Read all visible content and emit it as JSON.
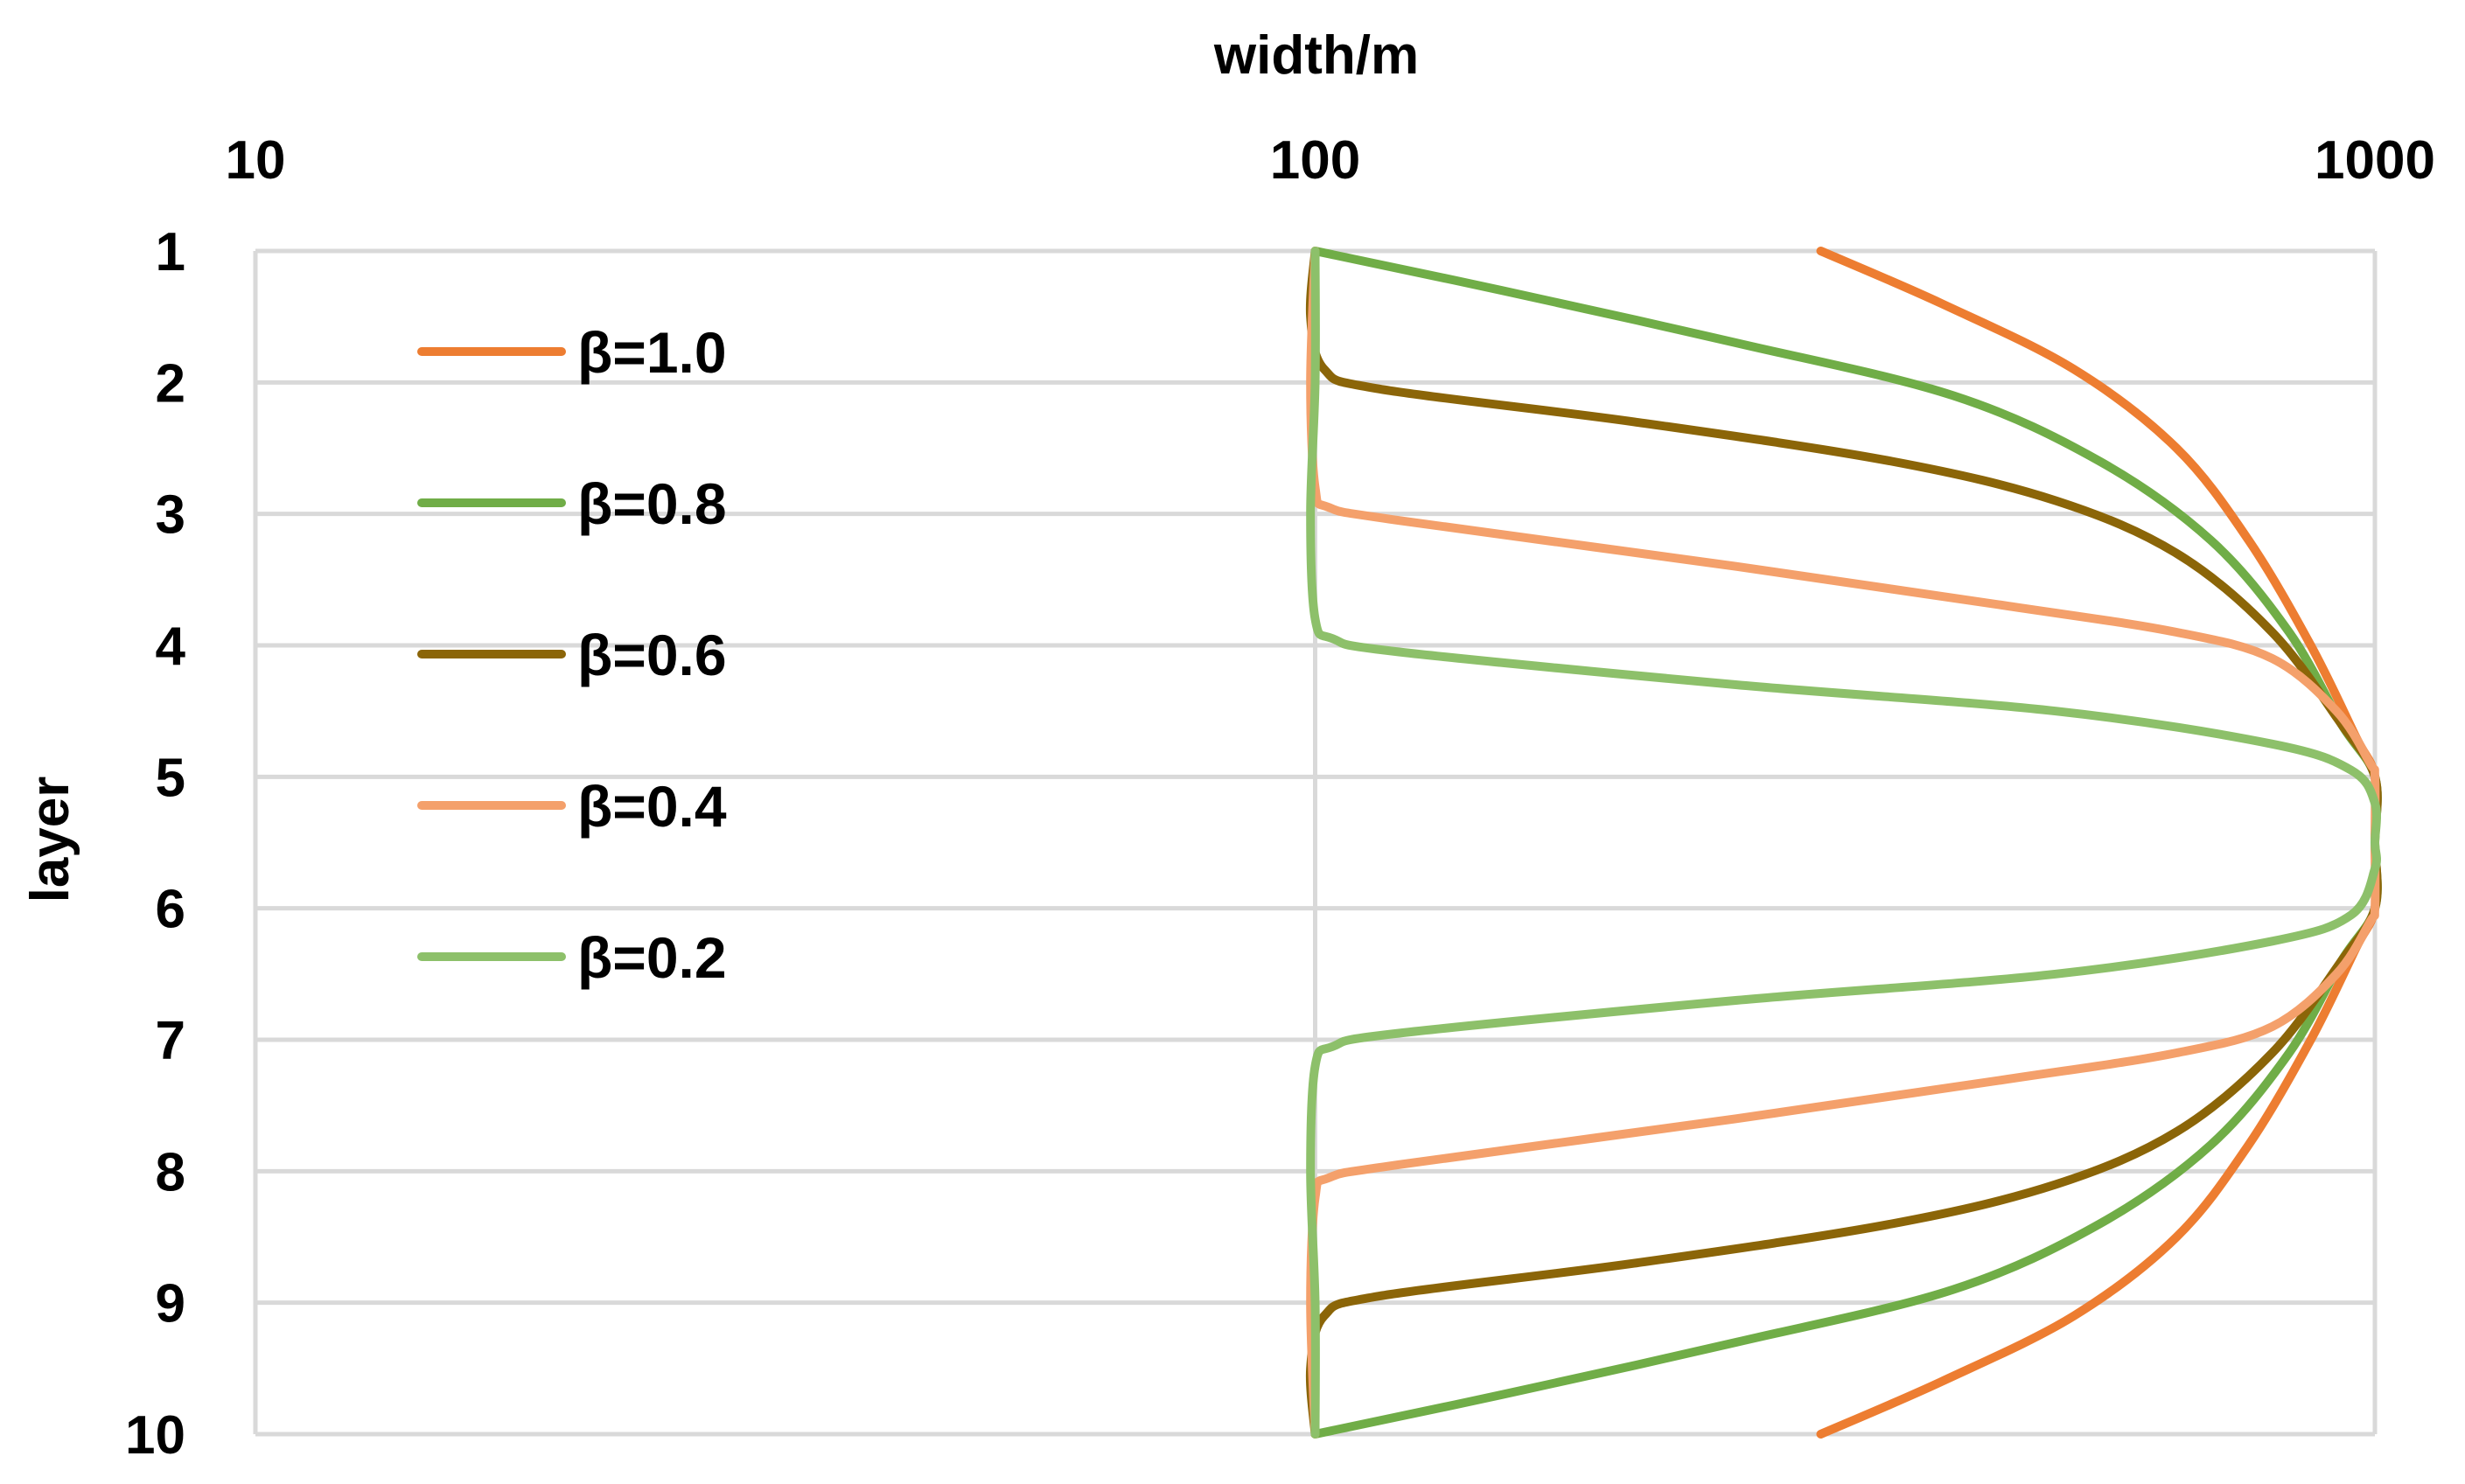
{
  "chart_data": {
    "type": "line",
    "title": "",
    "xlabel": "width/m",
    "ylabel": "layer",
    "x_axis_position": "top",
    "x_scale": "log",
    "xlim": [
      10,
      1000
    ],
    "x_ticks": [
      "10",
      "100",
      "1000"
    ],
    "ylim": [
      1,
      10
    ],
    "y_inverted": true,
    "y_ticks": [
      "1",
      "2",
      "3",
      "4",
      "5",
      "6",
      "7",
      "8",
      "9",
      "10"
    ],
    "grid": true,
    "legend_position": "top-left",
    "series": [
      {
        "name": "β=1.0",
        "color": "#ED7D31",
        "points": [
          [
            300,
            1
          ],
          [
            390,
            1.4
          ],
          [
            520,
            1.9
          ],
          [
            650,
            2.5
          ],
          [
            760,
            3.2
          ],
          [
            870,
            4.0
          ],
          [
            960,
            4.7
          ],
          [
            1000,
            5.0
          ],
          [
            1000,
            5.5
          ],
          [
            1000,
            6.0
          ],
          [
            960,
            6.3
          ],
          [
            870,
            7.0
          ],
          [
            760,
            7.8
          ],
          [
            650,
            8.5
          ],
          [
            520,
            9.1
          ],
          [
            390,
            9.6
          ],
          [
            300,
            10
          ]
        ]
      },
      {
        "name": "β=0.8",
        "color": "#70AD47",
        "points": [
          [
            100,
            1
          ],
          [
            150,
            1.3
          ],
          [
            250,
            1.7
          ],
          [
            400,
            2.1
          ],
          [
            550,
            2.6
          ],
          [
            700,
            3.2
          ],
          [
            830,
            3.9
          ],
          [
            930,
            4.6
          ],
          [
            1000,
            5.0
          ],
          [
            1000,
            5.5
          ],
          [
            1000,
            6.0
          ],
          [
            930,
            6.4
          ],
          [
            830,
            7.1
          ],
          [
            700,
            7.8
          ],
          [
            550,
            8.4
          ],
          [
            400,
            8.9
          ],
          [
            250,
            9.3
          ],
          [
            150,
            9.7
          ],
          [
            100,
            10
          ]
        ]
      },
      {
        "name": "β=0.6",
        "color": "#8B6508",
        "points": [
          [
            100,
            1
          ],
          [
            99,
            1.5
          ],
          [
            102,
            1.9
          ],
          [
            115,
            2.05
          ],
          [
            200,
            2.3
          ],
          [
            350,
            2.6
          ],
          [
            500,
            2.9
          ],
          [
            650,
            3.3
          ],
          [
            800,
            3.9
          ],
          [
            930,
            4.6
          ],
          [
            1000,
            5.0
          ],
          [
            1000,
            5.5
          ],
          [
            1000,
            6.0
          ],
          [
            930,
            6.4
          ],
          [
            800,
            7.1
          ],
          [
            650,
            7.7
          ],
          [
            500,
            8.1
          ],
          [
            350,
            8.4
          ],
          [
            200,
            8.7
          ],
          [
            115,
            8.95
          ],
          [
            102,
            9.1
          ],
          [
            99,
            9.5
          ],
          [
            100,
            10
          ]
        ]
      },
      {
        "name": "β=0.4",
        "color": "#F4A06B",
        "points": [
          [
            100,
            1
          ],
          [
            99,
            2.0
          ],
          [
            100,
            2.8
          ],
          [
            103,
            2.95
          ],
          [
            120,
            3.05
          ],
          [
            250,
            3.4
          ],
          [
            450,
            3.7
          ],
          [
            650,
            3.9
          ],
          [
            800,
            4.1
          ],
          [
            920,
            4.5
          ],
          [
            990,
            4.9
          ],
          [
            1000,
            5.0
          ],
          [
            1000,
            5.5
          ],
          [
            1000,
            6.0
          ],
          [
            990,
            6.1
          ],
          [
            920,
            6.5
          ],
          [
            800,
            6.9
          ],
          [
            650,
            7.1
          ],
          [
            450,
            7.3
          ],
          [
            250,
            7.6
          ],
          [
            120,
            7.95
          ],
          [
            103,
            8.05
          ],
          [
            100,
            8.2
          ],
          [
            99,
            9.0
          ],
          [
            100,
            10
          ]
        ]
      },
      {
        "name": "β=0.2",
        "color": "#8DC06A",
        "points": [
          [
            100,
            1
          ],
          [
            100,
            2.0
          ],
          [
            99,
            3.0
          ],
          [
            100,
            3.8
          ],
          [
            104,
            3.95
          ],
          [
            120,
            4.05
          ],
          [
            250,
            4.3
          ],
          [
            500,
            4.5
          ],
          [
            800,
            4.75
          ],
          [
            950,
            4.95
          ],
          [
            1000,
            5.2
          ],
          [
            1000,
            5.5
          ],
          [
            1000,
            5.7
          ],
          [
            950,
            6.05
          ],
          [
            800,
            6.25
          ],
          [
            500,
            6.5
          ],
          [
            250,
            6.7
          ],
          [
            120,
            6.95
          ],
          [
            104,
            7.05
          ],
          [
            100,
            7.2
          ],
          [
            99,
            8.0
          ],
          [
            100,
            9.0
          ],
          [
            100,
            10
          ]
        ]
      }
    ]
  }
}
